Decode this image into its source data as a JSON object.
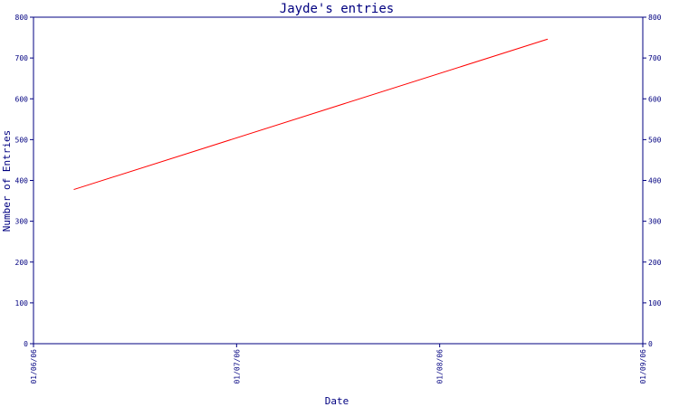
{
  "chart_data": {
    "type": "line",
    "title": "Jayde's entries",
    "xlabel": "Date",
    "ylabel": "Number of Entries",
    "x_ticks": [
      "01/06/06",
      "01/07/06",
      "01/08/06",
      "01/09/06"
    ],
    "ylim": [
      0,
      800
    ],
    "y_ticks": [
      0,
      100,
      200,
      300,
      400,
      500,
      600,
      700,
      800
    ],
    "series": [
      {
        "x": [
          "01/06/06 + 0.2 month",
          "01/08/06 + 0.53 month"
        ],
        "x_positions": [
          0.2,
          2.53
        ],
        "values": [
          378,
          746
        ]
      }
    ],
    "colors": {
      "axis": "#000080",
      "line": "#ff0000",
      "background": "#ffffff"
    },
    "grid": false
  }
}
